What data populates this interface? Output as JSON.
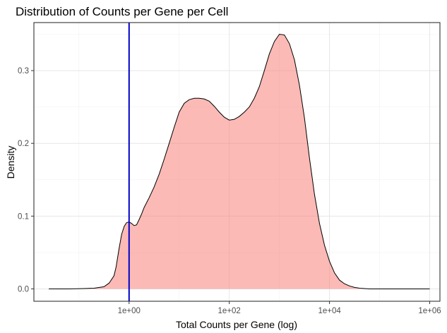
{
  "chart_data": {
    "type": "area",
    "title": "Distribution of Counts per Gene per Cell",
    "xlabel": "Total Counts per Gene (log)",
    "ylabel": "Density",
    "x_scale": "log10",
    "xlim": [
      0.0126,
      1600000.0
    ],
    "ylim": [
      -0.017,
      0.366
    ],
    "x_ticks": [
      {
        "value": 1,
        "label": "1e+00"
      },
      {
        "value": 100,
        "label": "1e+02"
      },
      {
        "value": 10000,
        "label": "1e+04"
      },
      {
        "value": 1000000,
        "label": "1e+06"
      }
    ],
    "y_ticks": [
      {
        "value": 0.0,
        "label": "0.0"
      },
      {
        "value": 0.1,
        "label": "0.1"
      },
      {
        "value": 0.2,
        "label": "0.2"
      },
      {
        "value": 0.3,
        "label": "0.3"
      }
    ],
    "grid": true,
    "fill_color": "#f8766d",
    "fill_opacity": 0.5,
    "line_color": "#000000",
    "vline": {
      "x": 1,
      "color": "#0000cc"
    },
    "series": [
      {
        "x": [
          0.025,
          0.063,
          0.126,
          0.2,
          0.316,
          0.4,
          0.5,
          0.55,
          0.63,
          0.71,
          0.8,
          0.89,
          1.0,
          1.12,
          1.26,
          1.41,
          1.58,
          1.78,
          2.0,
          2.5,
          3.16,
          4.0,
          5.0,
          6.31,
          7.94,
          10.0,
          12.6,
          15.8,
          20.0,
          25.1,
          31.6,
          39.8,
          50.1,
          63.1,
          79.4,
          100,
          126,
          158,
          200,
          251,
          316,
          398,
          501,
          631,
          794,
          1000,
          1259,
          1585,
          1995,
          2512,
          3162,
          3981,
          5012,
          6310,
          7943,
          10000,
          12589,
          15849,
          19953,
          25119,
          31623,
          39811,
          50119,
          63096,
          79433,
          100000,
          158489,
          251189,
          398107,
          630957,
          1000000
        ],
        "y": [
          0.0,
          0.0,
          0.0005,
          0.001,
          0.003,
          0.008,
          0.018,
          0.03,
          0.055,
          0.075,
          0.086,
          0.091,
          0.092,
          0.09,
          0.087,
          0.088,
          0.095,
          0.103,
          0.112,
          0.125,
          0.14,
          0.158,
          0.178,
          0.2,
          0.222,
          0.243,
          0.255,
          0.26,
          0.262,
          0.262,
          0.261,
          0.258,
          0.251,
          0.243,
          0.236,
          0.232,
          0.233,
          0.237,
          0.243,
          0.25,
          0.262,
          0.278,
          0.3,
          0.323,
          0.34,
          0.35,
          0.349,
          0.337,
          0.315,
          0.28,
          0.235,
          0.18,
          0.13,
          0.09,
          0.06,
          0.038,
          0.022,
          0.012,
          0.007,
          0.004,
          0.002,
          0.001,
          0.0005,
          0.0,
          0.0,
          0.0,
          0.0,
          0.0,
          0.0,
          0.0,
          0.0
        ]
      }
    ]
  }
}
